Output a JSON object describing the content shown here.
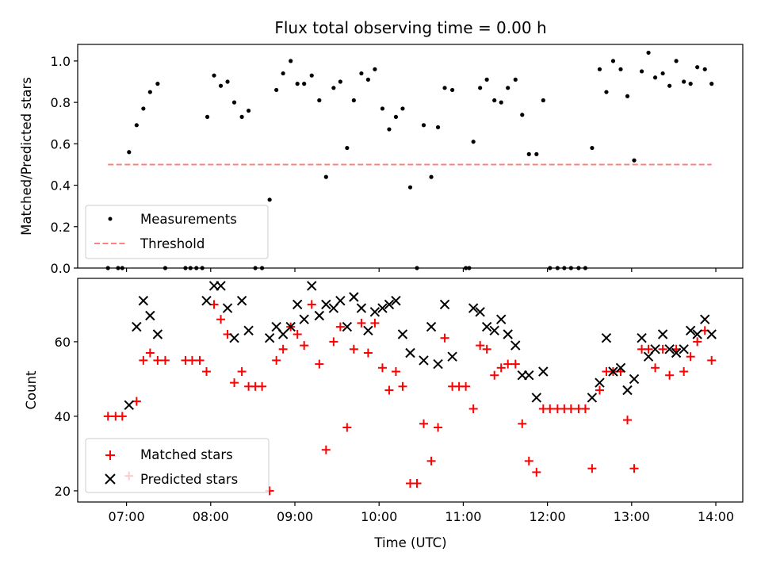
{
  "chart_data": [
    {
      "type": "scatter",
      "title": "Flux total observing time = 0.00 h",
      "ylabel": "Matched/Predicted stars",
      "xlabel": "",
      "ylim": [
        0.0,
        1.08
      ],
      "yticks": [
        0.0,
        0.2,
        0.4,
        0.6,
        0.8,
        1.0
      ],
      "ytick_labels": [
        "0.0",
        "0.2",
        "0.4",
        "0.6",
        "0.8",
        "1.0"
      ],
      "series": [
        {
          "name": "Measurements",
          "kind": "dot",
          "color": "#000000",
          "points": [
            [
              6.78,
              0.0
            ],
            [
              6.9,
              0.0
            ],
            [
              6.95,
              0.0
            ],
            [
              7.03,
              0.56
            ],
            [
              7.12,
              0.69
            ],
            [
              7.2,
              0.77
            ],
            [
              7.28,
              0.85
            ],
            [
              7.37,
              0.89
            ],
            [
              7.46,
              0.0
            ],
            [
              7.7,
              0.0
            ],
            [
              7.76,
              0.0
            ],
            [
              7.83,
              0.0
            ],
            [
              7.9,
              0.0
            ],
            [
              7.96,
              0.73
            ],
            [
              8.04,
              0.93
            ],
            [
              8.12,
              0.88
            ],
            [
              8.2,
              0.9
            ],
            [
              8.28,
              0.8
            ],
            [
              8.37,
              0.73
            ],
            [
              8.45,
              0.76
            ],
            [
              8.53,
              0.0
            ],
            [
              8.61,
              0.0
            ],
            [
              8.7,
              0.33
            ],
            [
              8.78,
              0.86
            ],
            [
              8.86,
              0.94
            ],
            [
              8.95,
              1.0
            ],
            [
              9.03,
              0.89
            ],
            [
              9.11,
              0.89
            ],
            [
              9.2,
              0.93
            ],
            [
              9.29,
              0.81
            ],
            [
              9.37,
              0.44
            ],
            [
              9.46,
              0.87
            ],
            [
              9.54,
              0.9
            ],
            [
              9.62,
              0.58
            ],
            [
              9.7,
              0.81
            ],
            [
              9.79,
              0.94
            ],
            [
              9.87,
              0.91
            ],
            [
              9.95,
              0.96
            ],
            [
              10.04,
              0.77
            ],
            [
              10.12,
              0.67
            ],
            [
              10.2,
              0.73
            ],
            [
              10.28,
              0.77
            ],
            [
              10.37,
              0.39
            ],
            [
              10.45,
              0.0
            ],
            [
              10.53,
              0.69
            ],
            [
              10.62,
              0.44
            ],
            [
              10.7,
              0.68
            ],
            [
              10.78,
              0.87
            ],
            [
              10.87,
              0.86
            ],
            [
              11.03,
              0.0
            ],
            [
              11.07,
              0.0
            ],
            [
              11.12,
              0.61
            ],
            [
              11.2,
              0.87
            ],
            [
              11.28,
              0.91
            ],
            [
              11.37,
              0.81
            ],
            [
              11.45,
              0.8
            ],
            [
              11.53,
              0.87
            ],
            [
              11.62,
              0.91
            ],
            [
              11.7,
              0.74
            ],
            [
              11.78,
              0.55
            ],
            [
              11.87,
              0.55
            ],
            [
              11.95,
              0.81
            ],
            [
              12.03,
              0.0
            ],
            [
              12.12,
              0.0
            ],
            [
              12.2,
              0.0
            ],
            [
              12.28,
              0.0
            ],
            [
              12.37,
              0.0
            ],
            [
              12.45,
              0.0
            ],
            [
              12.53,
              0.58
            ],
            [
              12.62,
              0.96
            ],
            [
              12.7,
              0.85
            ],
            [
              12.78,
              1.0
            ],
            [
              12.87,
              0.96
            ],
            [
              12.95,
              0.83
            ],
            [
              13.03,
              0.52
            ],
            [
              13.12,
              0.95
            ],
            [
              13.2,
              1.04
            ],
            [
              13.28,
              0.92
            ],
            [
              13.37,
              0.94
            ],
            [
              13.45,
              0.88
            ],
            [
              13.53,
              1.0
            ],
            [
              13.62,
              0.9
            ],
            [
              13.7,
              0.89
            ],
            [
              13.78,
              0.97
            ],
            [
              13.87,
              0.96
            ],
            [
              13.95,
              0.89
            ]
          ]
        },
        {
          "name": "Threshold",
          "kind": "dashed-line",
          "color": "#ff7f7f",
          "points": [
            [
              6.78,
              0.5
            ],
            [
              13.95,
              0.5
            ]
          ]
        }
      ],
      "legend_position": "lower-left"
    },
    {
      "type": "scatter",
      "title": "",
      "xlabel": "Time (UTC)",
      "ylabel": "Count",
      "xlim": [
        6.42,
        14.32
      ],
      "ylim": [
        17,
        77
      ],
      "xticks": [
        7,
        8,
        9,
        10,
        11,
        12,
        13,
        14
      ],
      "xtick_labels": [
        "07:00",
        "08:00",
        "09:00",
        "10:00",
        "11:00",
        "12:00",
        "13:00",
        "14:00"
      ],
      "yticks": [
        20,
        40,
        60
      ],
      "ytick_labels": [
        "20",
        "40",
        "60"
      ],
      "series": [
        {
          "name": "Matched stars",
          "kind": "plus",
          "color": "#ff0000",
          "points": [
            [
              6.78,
              40
            ],
            [
              6.87,
              40
            ],
            [
              6.95,
              40
            ],
            [
              7.03,
              24
            ],
            [
              7.12,
              44
            ],
            [
              7.2,
              55
            ],
            [
              7.28,
              57
            ],
            [
              7.37,
              55
            ],
            [
              7.46,
              55
            ],
            [
              7.7,
              55
            ],
            [
              7.78,
              55
            ],
            [
              7.87,
              55
            ],
            [
              7.95,
              52
            ],
            [
              8.04,
              70
            ],
            [
              8.12,
              66
            ],
            [
              8.2,
              62
            ],
            [
              8.28,
              49
            ],
            [
              8.37,
              52
            ],
            [
              8.45,
              48
            ],
            [
              8.53,
              48
            ],
            [
              8.61,
              48
            ],
            [
              8.7,
              20
            ],
            [
              8.78,
              55
            ],
            [
              8.86,
              58
            ],
            [
              8.95,
              64
            ],
            [
              9.03,
              62
            ],
            [
              9.11,
              59
            ],
            [
              9.2,
              70
            ],
            [
              9.29,
              54
            ],
            [
              9.37,
              31
            ],
            [
              9.46,
              60
            ],
            [
              9.54,
              64
            ],
            [
              9.62,
              37
            ],
            [
              9.7,
              58
            ],
            [
              9.79,
              65
            ],
            [
              9.87,
              57
            ],
            [
              9.95,
              65
            ],
            [
              10.04,
              53
            ],
            [
              10.12,
              47
            ],
            [
              10.2,
              52
            ],
            [
              10.28,
              48
            ],
            [
              10.37,
              22
            ],
            [
              10.45,
              22
            ],
            [
              10.53,
              38
            ],
            [
              10.62,
              28
            ],
            [
              10.7,
              37
            ],
            [
              10.78,
              61
            ],
            [
              10.87,
              48
            ],
            [
              10.95,
              48
            ],
            [
              11.03,
              48
            ],
            [
              11.12,
              42
            ],
            [
              11.2,
              59
            ],
            [
              11.28,
              58
            ],
            [
              11.37,
              51
            ],
            [
              11.45,
              53
            ],
            [
              11.53,
              54
            ],
            [
              11.62,
              54
            ],
            [
              11.7,
              38
            ],
            [
              11.78,
              28
            ],
            [
              11.87,
              25
            ],
            [
              11.95,
              42
            ],
            [
              12.03,
              42
            ],
            [
              12.12,
              42
            ],
            [
              12.2,
              42
            ],
            [
              12.28,
              42
            ],
            [
              12.37,
              42
            ],
            [
              12.45,
              42
            ],
            [
              12.53,
              26
            ],
            [
              12.62,
              47
            ],
            [
              12.7,
              52
            ],
            [
              12.78,
              52
            ],
            [
              12.87,
              52
            ],
            [
              12.95,
              39
            ],
            [
              13.03,
              26
            ],
            [
              13.12,
              58
            ],
            [
              13.2,
              58
            ],
            [
              13.28,
              53
            ],
            [
              13.37,
              58
            ],
            [
              13.45,
              51
            ],
            [
              13.53,
              58
            ],
            [
              13.62,
              52
            ],
            [
              13.7,
              56
            ],
            [
              13.78,
              60
            ],
            [
              13.87,
              63
            ],
            [
              13.95,
              55
            ]
          ]
        },
        {
          "name": "Predicted stars",
          "kind": "x",
          "color": "#000000",
          "points": [
            [
              7.03,
              43
            ],
            [
              7.12,
              64
            ],
            [
              7.2,
              71
            ],
            [
              7.28,
              67
            ],
            [
              7.37,
              62
            ],
            [
              7.95,
              71
            ],
            [
              8.04,
              75
            ],
            [
              8.12,
              75
            ],
            [
              8.2,
              69
            ],
            [
              8.28,
              61
            ],
            [
              8.37,
              71
            ],
            [
              8.45,
              63
            ],
            [
              8.7,
              61
            ],
            [
              8.78,
              64
            ],
            [
              8.86,
              62
            ],
            [
              8.95,
              64
            ],
            [
              9.03,
              70
            ],
            [
              9.11,
              66
            ],
            [
              9.2,
              75
            ],
            [
              9.29,
              67
            ],
            [
              9.37,
              70
            ],
            [
              9.46,
              69
            ],
            [
              9.54,
              71
            ],
            [
              9.62,
              64
            ],
            [
              9.7,
              72
            ],
            [
              9.79,
              69
            ],
            [
              9.87,
              63
            ],
            [
              9.95,
              68
            ],
            [
              10.04,
              69
            ],
            [
              10.12,
              70
            ],
            [
              10.2,
              71
            ],
            [
              10.28,
              62
            ],
            [
              10.37,
              57
            ],
            [
              10.53,
              55
            ],
            [
              10.62,
              64
            ],
            [
              10.7,
              54
            ],
            [
              10.78,
              70
            ],
            [
              10.87,
              56
            ],
            [
              11.12,
              69
            ],
            [
              11.2,
              68
            ],
            [
              11.28,
              64
            ],
            [
              11.37,
              63
            ],
            [
              11.45,
              66
            ],
            [
              11.53,
              62
            ],
            [
              11.62,
              59
            ],
            [
              11.7,
              51
            ],
            [
              11.78,
              51
            ],
            [
              11.87,
              45
            ],
            [
              11.95,
              52
            ],
            [
              12.53,
              45
            ],
            [
              12.62,
              49
            ],
            [
              12.7,
              61
            ],
            [
              12.78,
              52
            ],
            [
              12.87,
              53
            ],
            [
              12.95,
              47
            ],
            [
              13.03,
              50
            ],
            [
              13.12,
              61
            ],
            [
              13.2,
              56
            ],
            [
              13.28,
              58
            ],
            [
              13.37,
              62
            ],
            [
              13.45,
              58
            ],
            [
              13.53,
              57
            ],
            [
              13.62,
              58
            ],
            [
              13.7,
              63
            ],
            [
              13.78,
              62
            ],
            [
              13.87,
              66
            ],
            [
              13.95,
              62
            ]
          ]
        }
      ],
      "legend_position": "lower-left"
    }
  ]
}
